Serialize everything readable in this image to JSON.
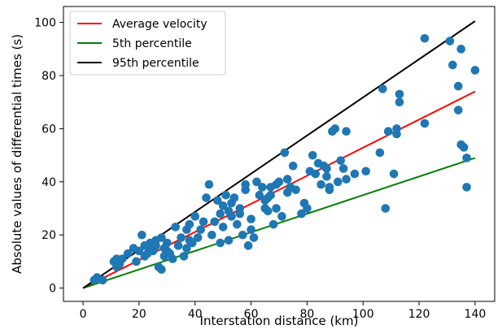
{
  "chart_data": {
    "type": "scatter",
    "xlabel": "Interstation distance (km)",
    "ylabel": "Absolute values of differential times (s)",
    "xlim": [
      -7,
      147
    ],
    "ylim": [
      -5,
      106
    ],
    "xticks": [
      0,
      20,
      40,
      60,
      80,
      100,
      120,
      140
    ],
    "yticks": [
      0,
      20,
      40,
      60,
      80,
      100
    ],
    "legend_position": "top-left",
    "grid": false,
    "lines": [
      {
        "name": "Average velocity",
        "color": "#ff0000",
        "x": [
          0,
          140
        ],
        "y": [
          0,
          74
        ]
      },
      {
        "name": "5th percentile",
        "color": "#008000",
        "x": [
          0,
          140
        ],
        "y": [
          0,
          49
        ]
      },
      {
        "name": "95th percentile",
        "color": "#000000",
        "x": [
          0,
          140
        ],
        "y": [
          0,
          100.5
        ]
      }
    ],
    "points": {
      "color": "#1f77b4",
      "x": [
        4,
        5,
        7,
        11,
        12,
        12,
        13,
        14,
        16,
        18,
        19,
        20,
        21,
        22,
        22,
        23,
        24,
        24,
        25,
        26,
        26,
        27,
        28,
        28,
        29,
        29,
        30,
        30,
        31,
        32,
        33,
        34,
        35,
        36,
        37,
        37,
        38,
        38,
        39,
        40,
        41,
        42,
        43,
        44,
        45,
        46,
        47,
        48,
        49,
        49,
        50,
        50,
        51,
        52,
        52,
        53,
        53,
        54,
        55,
        56,
        56,
        57,
        58,
        58,
        59,
        60,
        60,
        61,
        62,
        63,
        64,
        65,
        65,
        66,
        66,
        67,
        67,
        68,
        69,
        69,
        70,
        71,
        72,
        73,
        73,
        74,
        75,
        76,
        78,
        79,
        80,
        81,
        82,
        83,
        84,
        85,
        86,
        87,
        87,
        88,
        88,
        89,
        90,
        91,
        92,
        93,
        94,
        94,
        97,
        101,
        106,
        107,
        108,
        109,
        111,
        112,
        112,
        113,
        113,
        122,
        122,
        131,
        132,
        134,
        134,
        135,
        135,
        136,
        137,
        137,
        140
      ],
      "y": [
        3,
        4,
        3,
        10,
        8,
        11,
        9,
        11,
        13,
        15,
        10,
        14,
        20,
        12,
        16,
        13,
        15,
        17,
        14,
        16,
        18,
        8,
        7,
        19,
        12,
        15,
        14,
        17,
        13,
        11,
        23,
        16,
        19,
        12,
        15,
        22,
        18,
        24,
        17,
        27,
        19,
        22,
        25,
        34,
        39,
        20,
        25,
        33,
        28,
        17,
        31,
        23,
        35,
        18,
        29,
        32,
        27,
        34,
        24,
        28,
        30,
        20,
        37,
        39,
        16,
        22,
        26,
        19,
        40,
        35,
        38,
        33,
        30,
        29,
        34,
        35,
        38,
        24,
        30,
        39,
        40,
        27,
        51,
        36,
        41,
        38,
        46,
        37,
        28,
        32,
        30,
        44,
        50,
        43,
        47,
        39,
        46,
        45,
        42,
        37,
        38,
        59,
        60,
        40,
        48,
        45,
        59,
        41,
        43,
        44,
        51,
        75,
        30,
        59,
        43,
        58,
        60,
        70,
        73,
        62,
        94,
        93,
        84,
        67,
        76,
        90,
        54,
        53,
        38,
        49,
        82
      ]
    }
  }
}
